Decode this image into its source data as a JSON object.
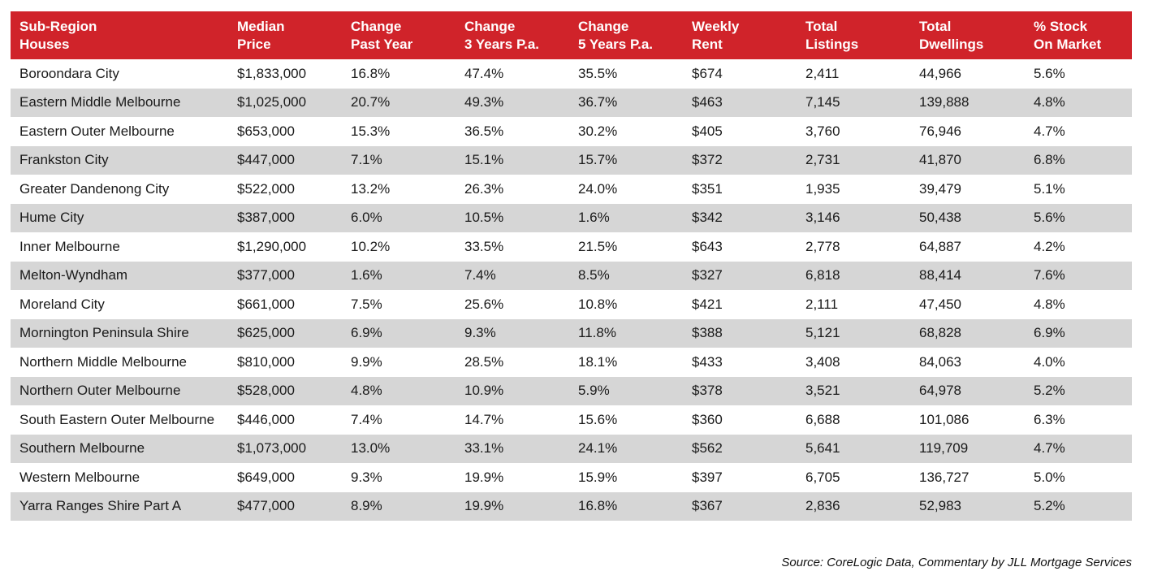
{
  "table": {
    "columns": [
      [
        "Sub-Region",
        "Houses"
      ],
      [
        "Median",
        "Price"
      ],
      [
        "Change",
        "Past Year"
      ],
      [
        "Change",
        "3 Years P.a."
      ],
      [
        "Change",
        "5 Years P.a."
      ],
      [
        "Weekly",
        "Rent"
      ],
      [
        "Total",
        "Listings"
      ],
      [
        "Total",
        "Dwellings"
      ],
      [
        "% Stock",
        "On Market"
      ]
    ],
    "rows": [
      [
        "Boroondara City",
        "$1,833,000",
        "16.8%",
        "47.4%",
        "35.5%",
        "$674",
        "2,411",
        "44,966",
        "5.6%"
      ],
      [
        "Eastern Middle Melbourne",
        "$1,025,000",
        "20.7%",
        "49.3%",
        "36.7%",
        "$463",
        "7,145",
        "139,888",
        "4.8%"
      ],
      [
        "Eastern Outer Melbourne",
        "$653,000",
        "15.3%",
        "36.5%",
        "30.2%",
        "$405",
        "3,760",
        "76,946",
        "4.7%"
      ],
      [
        "Frankston City",
        "$447,000",
        "7.1%",
        "15.1%",
        "15.7%",
        "$372",
        "2,731",
        "41,870",
        "6.8%"
      ],
      [
        "Greater Dandenong City",
        "$522,000",
        "13.2%",
        "26.3%",
        "24.0%",
        "$351",
        "1,935",
        "39,479",
        "5.1%"
      ],
      [
        "Hume City",
        "$387,000",
        "6.0%",
        "10.5%",
        "1.6%",
        "$342",
        "3,146",
        "50,438",
        "5.6%"
      ],
      [
        "Inner Melbourne",
        "$1,290,000",
        "10.2%",
        "33.5%",
        "21.5%",
        "$643",
        "2,778",
        "64,887",
        "4.2%"
      ],
      [
        "Melton-Wyndham",
        "$377,000",
        "1.6%",
        "7.4%",
        "8.5%",
        "$327",
        "6,818",
        "88,414",
        "7.6%"
      ],
      [
        "Moreland City",
        "$661,000",
        "7.5%",
        "25.6%",
        "10.8%",
        "$421",
        "2,111",
        "47,450",
        "4.8%"
      ],
      [
        "Mornington Peninsula Shire",
        "$625,000",
        "6.9%",
        "9.3%",
        "11.8%",
        "$388",
        "5,121",
        "68,828",
        "6.9%"
      ],
      [
        "Northern Middle Melbourne",
        "$810,000",
        "9.9%",
        "28.5%",
        "18.1%",
        "$433",
        "3,408",
        "84,063",
        "4.0%"
      ],
      [
        "Northern Outer Melbourne",
        "$528,000",
        "4.8%",
        "10.9%",
        "5.9%",
        "$378",
        "3,521",
        "64,978",
        "5.2%"
      ],
      [
        "South Eastern Outer Melbourne",
        "$446,000",
        "7.4%",
        "14.7%",
        "15.6%",
        "$360",
        "6,688",
        "101,086",
        "6.3%"
      ],
      [
        "Southern Melbourne",
        "$1,073,000",
        "13.0%",
        "33.1%",
        "24.1%",
        "$562",
        "5,641",
        "119,709",
        "4.7%"
      ],
      [
        "Western Melbourne",
        "$649,000",
        "9.3%",
        "19.9%",
        "15.9%",
        "$397",
        "6,705",
        "136,727",
        "5.0%"
      ],
      [
        "Yarra Ranges Shire Part A",
        "$477,000",
        "8.9%",
        "19.9%",
        "16.8%",
        "$367",
        "2,836",
        "52,983",
        "5.2%"
      ]
    ],
    "header_color": "#d0232a",
    "stripe_color": "#d6d6d6"
  },
  "source_note": "Source: CoreLogic Data, Commentary by JLL Mortgage Services"
}
